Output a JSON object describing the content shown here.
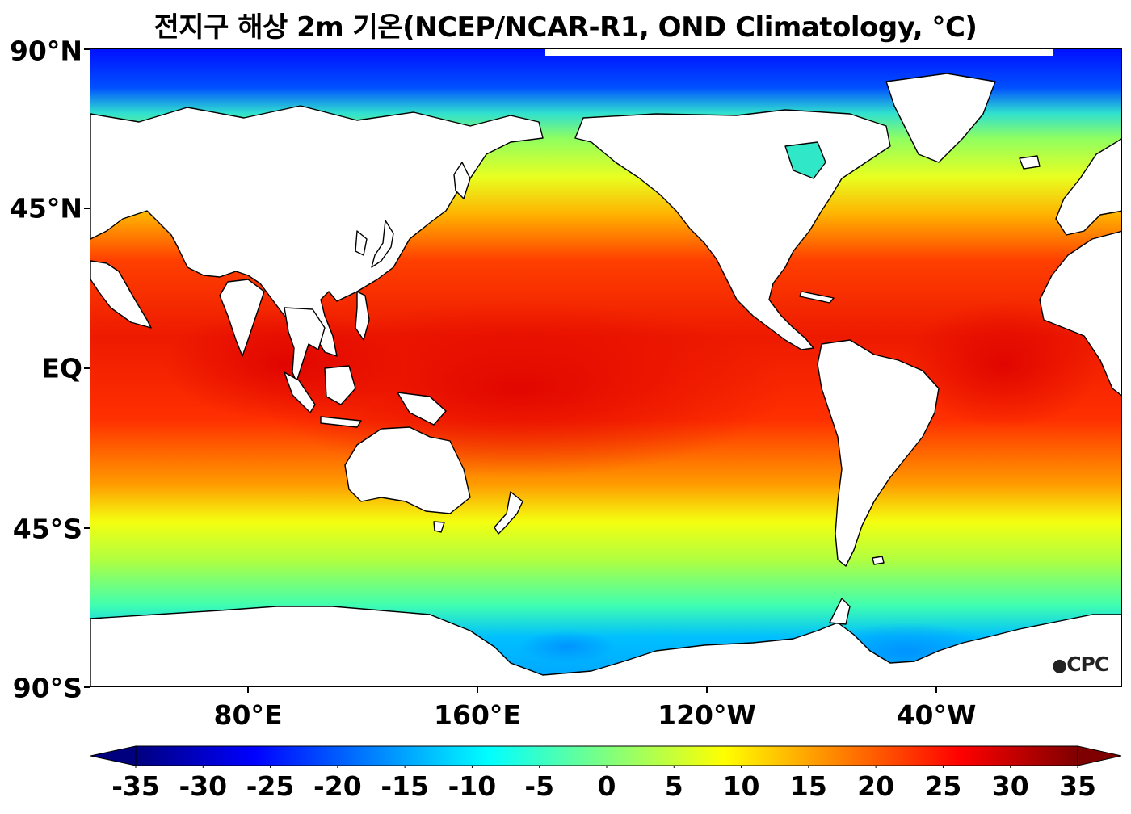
{
  "title": "전지구 해상 2m 기온(NCEP/NCAR-R1, OND Climatology, °C)",
  "map": {
    "projection": "equirectangular",
    "lon_center": "180°",
    "lat_range": [
      -90,
      90
    ],
    "land_color": "#ffffff",
    "coastline_color": "#000000",
    "lat_labels": [
      "90°N",
      "45°N",
      "EQ",
      "45°S",
      "90°S"
    ],
    "lat_values": [
      90,
      45,
      0,
      -45,
      -90
    ],
    "lon_labels": [
      "80°E",
      "160°E",
      "120°W",
      "40°W"
    ],
    "lon_values": [
      80,
      160,
      240,
      320
    ]
  },
  "watermark": "CPC",
  "colorbar": {
    "colormap": "jet",
    "extend": "both",
    "ticks": [
      "-35",
      "-30",
      "-25",
      "-20",
      "-15",
      "-10",
      "-5",
      "0",
      "5",
      "10",
      "15",
      "20",
      "25",
      "30",
      "35"
    ],
    "tick_values": [
      -35,
      -30,
      -25,
      -20,
      -15,
      -10,
      -5,
      0,
      5,
      10,
      15,
      20,
      25,
      30,
      35
    ],
    "min": -35,
    "max": 35,
    "colors": [
      "#00007f",
      "#0000ff",
      "#007fff",
      "#00ffff",
      "#7fff7f",
      "#ffff00",
      "#ff7f00",
      "#ff0000",
      "#7f0000"
    ]
  }
}
